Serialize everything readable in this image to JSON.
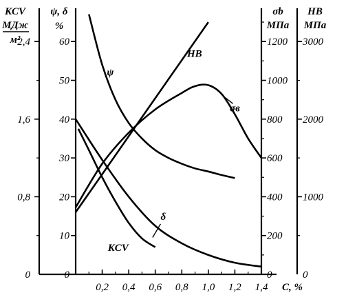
{
  "chart_data": {
    "type": "line",
    "x_axis": {
      "label": "C, %",
      "range": [
        0,
        1.4
      ],
      "ticks": [
        "0,2",
        "0,4",
        "0,6",
        "0,8",
        "1,0",
        "1,2",
        "1,4"
      ]
    },
    "y_axes": [
      {
        "id": "kcv",
        "label_line1": "KCV",
        "label_line2": "МДж",
        "label_line3": "м²",
        "range": [
          0,
          2.7
        ],
        "ticks": [
          "0",
          "0,8",
          "1,6",
          "2,4"
        ]
      },
      {
        "id": "psi_delta",
        "label_line1": "ψ, δ",
        "label_line2": "%",
        "range": [
          0,
          67.5
        ],
        "ticks": [
          "0",
          "10",
          "20",
          "30",
          "40",
          "50",
          "60"
        ]
      },
      {
        "id": "sigma",
        "label_line1": "σb",
        "label_line2": "МПа",
        "range": [
          0,
          1350
        ],
        "ticks": [
          "0",
          "200",
          "400",
          "600",
          "800",
          "1000",
          "1200"
        ]
      },
      {
        "id": "hb",
        "label_line1": "HB",
        "label_line2": "МПа",
        "range": [
          0,
          3375
        ],
        "ticks": [
          "0",
          "1000",
          "2000",
          "3000"
        ]
      }
    ],
    "series": [
      {
        "name": "ψ",
        "axis": "psi_delta",
        "x": [
          0.1,
          0.2,
          0.3,
          0.4,
          0.5,
          0.6,
          0.7,
          0.8,
          0.9,
          1.0,
          1.1,
          1.2
        ],
        "values": [
          67,
          54,
          45,
          39,
          35,
          32,
          30,
          28.5,
          27.3,
          26.5,
          25.6,
          24.8
        ]
      },
      {
        "name": "δ",
        "axis": "psi_delta",
        "x": [
          0.0,
          0.2,
          0.4,
          0.6,
          0.8,
          1.0,
          1.2,
          1.4
        ],
        "values": [
          40,
          29.5,
          20,
          12.5,
          8,
          5,
          3,
          2
        ]
      },
      {
        "name": "HB",
        "axis": "hb",
        "x": [
          0.0,
          1.0
        ],
        "values": [
          800,
          3250
        ]
      },
      {
        "name": "σв",
        "axis": "sigma",
        "x": [
          0.0,
          0.2,
          0.4,
          0.6,
          0.8,
          0.9,
          1.0,
          1.1,
          1.2,
          1.3,
          1.4
        ],
        "values": [
          345,
          570,
          730,
          850,
          935,
          970,
          975,
          930,
          825,
          700,
          600
        ]
      },
      {
        "name": "KCV",
        "axis": "kcv",
        "x": [
          0.02,
          0.1,
          0.2,
          0.3,
          0.4,
          0.5,
          0.6
        ],
        "values": [
          1.5,
          1.28,
          1.0,
          0.75,
          0.53,
          0.37,
          0.28
        ]
      }
    ],
    "grid": false
  }
}
